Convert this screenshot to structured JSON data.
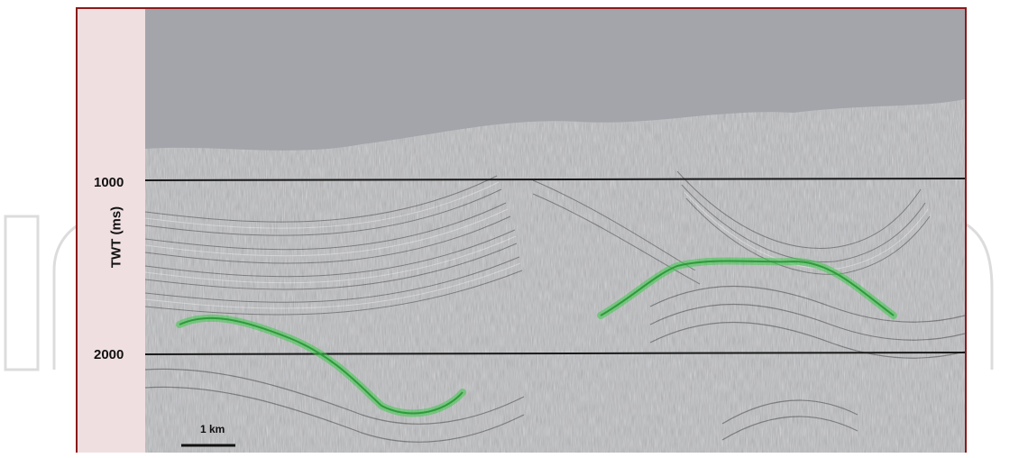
{
  "axis": {
    "title": "TWT (ms)",
    "ticks": [
      {
        "label": "1000"
      },
      {
        "label": "2000"
      }
    ]
  },
  "scale_bar": {
    "label": "1 km"
  },
  "colors": {
    "frame": "#8b1a1a",
    "axis_strip": "#f0dfe1",
    "water": "#a3a5aa",
    "horizon": "#3cc84a",
    "timeline": "#1a1a1a"
  }
}
